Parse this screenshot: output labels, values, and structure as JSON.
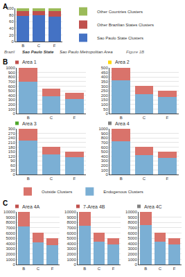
{
  "annotations": [
    "A",
    "B",
    "C",
    "Brazil",
    "Sao Paulo State",
    "Sao Paulo Metropolitan Area",
    "Figure 1B"
  ],
  "chart_data": [
    {
      "type": "bar",
      "stacked": true,
      "grid": true,
      "legend": "right",
      "categories": [
        "B",
        "C",
        "F"
      ],
      "series": [
        {
          "name": "Sao Paulo State Clusters",
          "color": "#4472c4",
          "values": [
            78,
            80,
            75
          ]
        },
        {
          "name": "Other Brazilian States Clusters",
          "color": "#c0504d",
          "values": [
            14,
            12,
            16
          ]
        },
        {
          "name": "Other Countries Clusters",
          "color": "#9bbb59",
          "values": [
            8,
            8,
            9
          ]
        }
      ],
      "ylim": [
        0,
        100
      ],
      "yticks": [
        0,
        20,
        40,
        60,
        80,
        100
      ]
    },
    {
      "type": "bar",
      "stacked": true,
      "grid": true,
      "legend": "bottom",
      "title": "Area 1",
      "color": "#c0504d",
      "categories": [
        "B",
        "C",
        "F"
      ],
      "series": [
        {
          "name": "Endogenous Clusters",
          "color": "#7bafd4",
          "values": [
            700,
            374,
            324
          ]
        },
        {
          "name": "Outside Clusters",
          "color": "#d9736b",
          "values": [
            300,
            176,
            126
          ]
        }
      ],
      "ylim": [
        0,
        1000
      ],
      "yticks": [
        0,
        100,
        200,
        300,
        400,
        500,
        600,
        700,
        800,
        900,
        1000
      ]
    },
    {
      "type": "bar",
      "stacked": true,
      "grid": true,
      "title": "Area 2",
      "color": "#ffd700",
      "categories": [
        "B",
        "C",
        "F"
      ],
      "series": [
        {
          "name": "Endogenous Clusters",
          "color": "#7bafd4",
          "values": [
            360,
            210,
            185
          ]
        },
        {
          "name": "Outside Clusters",
          "color": "#d9736b",
          "values": [
            140,
            90,
            65
          ]
        }
      ],
      "ylim": [
        0,
        500
      ],
      "yticks": [
        0,
        50,
        100,
        150,
        200,
        250,
        300,
        350,
        400,
        450,
        500
      ]
    },
    {
      "type": "bar",
      "stacked": true,
      "grid": true,
      "title": "Area 3",
      "color": "#4ea72a",
      "categories": [
        "B",
        "C",
        "F"
      ],
      "series": [
        {
          "name": "Endogenous Clusters",
          "color": "#7bafd4",
          "values": [
            225,
            131.4,
            115.5
          ]
        },
        {
          "name": "Outside Clusters",
          "color": "#d9736b",
          "values": [
            75,
            48.6,
            34.5
          ]
        }
      ],
      "ylim": [
        0,
        300
      ],
      "yticks": [
        0,
        30,
        60,
        90,
        120,
        150,
        180,
        210,
        240,
        270,
        300
      ]
    },
    {
      "type": "bar",
      "stacked": true,
      "grid": true,
      "title": "Area 4",
      "color": "#808080",
      "categories": [
        "B",
        "C",
        "F"
      ],
      "series": [
        {
          "name": "Endogenous Clusters",
          "color": "#7bafd4",
          "values": [
            720,
            420,
            370
          ]
        },
        {
          "name": "Outside Clusters",
          "color": "#d9736b",
          "values": [
            280,
            180,
            130
          ]
        }
      ],
      "ylim": [
        0,
        1000
      ],
      "yticks": [
        0,
        100,
        200,
        300,
        400,
        500,
        600,
        700,
        800,
        900,
        1000
      ]
    },
    {
      "type": "bar",
      "stacked": true,
      "grid": true,
      "title": "Area 4A",
      "color": "#c0504d",
      "categories": [
        "B",
        "C",
        "F"
      ],
      "series": [
        {
          "name": "Endogenous Clusters",
          "color": "#7bafd4",
          "values": [
            7200,
            4200,
            3700
          ]
        },
        {
          "name": "Outside Clusters",
          "color": "#d9736b",
          "values": [
            2800,
            1800,
            1300
          ]
        }
      ],
      "ylim": [
        0,
        10000
      ],
      "yticks": [
        0,
        1000,
        2000,
        3000,
        4000,
        5000,
        6000,
        7000,
        8000,
        9000,
        10000
      ]
    },
    {
      "type": "bar",
      "stacked": true,
      "grid": true,
      "title": "7-Area 4B",
      "color": "#c0504d",
      "categories": [
        "B",
        "C",
        "F"
      ],
      "series": [
        {
          "name": "Endogenous Clusters",
          "color": "#7bafd4",
          "values": [
            7400,
            4320,
            3800
          ]
        },
        {
          "name": "Outside Clusters",
          "color": "#d9736b",
          "values": [
            2600,
            1680,
            1200
          ]
        }
      ],
      "ylim": [
        0,
        10000
      ],
      "yticks": [
        0,
        1000,
        2000,
        3000,
        4000,
        5000,
        6000,
        7000,
        8000,
        9000,
        10000
      ]
    },
    {
      "type": "bar",
      "stacked": true,
      "grid": true,
      "title": "Area 4C",
      "color": "#808080",
      "categories": [
        "B",
        "C",
        "F"
      ],
      "series": [
        {
          "name": "Endogenous Clusters",
          "color": "#7bafd4",
          "values": [
            7500,
            4380,
            3850
          ]
        },
        {
          "name": "Outside Clusters",
          "color": "#d9736b",
          "values": [
            2500,
            1620,
            1150
          ]
        }
      ],
      "ylim": [
        0,
        10000
      ],
      "yticks": [
        0,
        1000,
        2000,
        3000,
        4000,
        5000,
        6000,
        7000,
        8000,
        9000,
        10000
      ]
    }
  ]
}
